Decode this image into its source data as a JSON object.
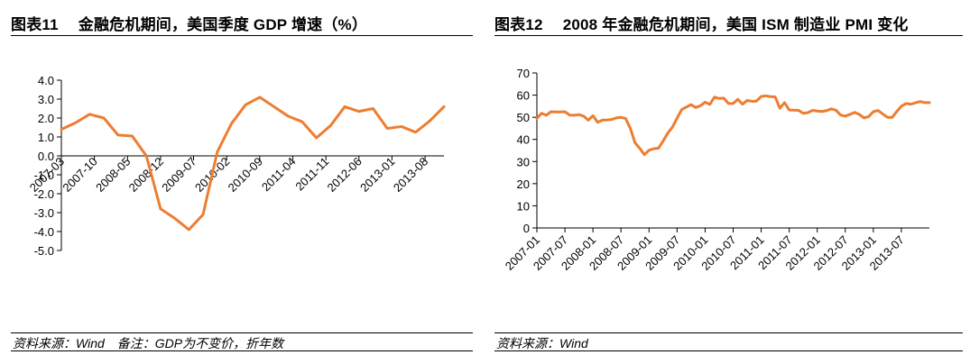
{
  "left": {
    "title_num": "图表11",
    "title_text": "金融危机期间，美国季度 GDP 增速（%）",
    "source": "资料来源：Wind",
    "note": "备注：GDP为不变价，折年数"
  },
  "right": {
    "title_num": "图表12",
    "title_text": "2008 年金融危机期间，美国 ISM 制造业 PMI 变化",
    "source": "资料来源：Wind"
  },
  "colors": {
    "line": "#ED7D31",
    "axis": "#000000"
  },
  "chart_data": [
    {
      "id": "gdp",
      "type": "line",
      "title": "金融危机期间，美国季度 GDP 增速（%）",
      "ylim": [
        -5.0,
        4.0
      ],
      "ytick_values": [
        4.0,
        3.0,
        2.0,
        1.0,
        0.0,
        -1.0,
        -2.0,
        -3.0,
        -4.0,
        -5.0
      ],
      "ytick_labels": [
        "4.0",
        "3.0",
        "2.0",
        "1.0",
        "0.0",
        "-1.0",
        "-2.0",
        "-3.0",
        "-4.0",
        "-5.0"
      ],
      "xtick_labels": [
        "2007-03",
        "2007-10",
        "2008-05",
        "2008-12",
        "2009-07",
        "2010-02",
        "2010-09",
        "2011-04",
        "2011-11",
        "2012-06",
        "2013-01",
        "2013-08"
      ],
      "xtick_index": [
        0,
        2.33,
        4.67,
        7,
        9.33,
        11.67,
        14,
        16.33,
        18.67,
        21,
        23.33,
        25.67
      ],
      "series": [
        {
          "name": "美国季度GDP增速",
          "values": [
            1.4,
            1.75,
            2.2,
            2.0,
            1.1,
            1.05,
            0.0,
            -2.8,
            -3.3,
            -3.9,
            -3.1,
            0.2,
            1.7,
            2.7,
            3.1,
            2.6,
            2.1,
            1.8,
            0.95,
            1.6,
            2.6,
            2.35,
            2.5,
            1.45,
            1.55,
            1.25,
            1.85,
            2.6
          ]
        }
      ]
    },
    {
      "id": "pmi",
      "type": "line",
      "title": "2008 年金融危机期间，美国 ISM 制造业 PMI 变化",
      "ylim": [
        0,
        70
      ],
      "ytick_values": [
        70,
        60,
        50,
        40,
        30,
        20,
        10,
        0
      ],
      "ytick_labels": [
        "70",
        "60",
        "50",
        "40",
        "30",
        "20",
        "10",
        "0"
      ],
      "xtick_labels": [
        "2007-01",
        "2007-07",
        "2008-01",
        "2008-07",
        "2009-01",
        "2009-07",
        "2010-01",
        "2010-07",
        "2011-01",
        "2011-07",
        "2012-01",
        "2012-07",
        "2013-01",
        "2013-07"
      ],
      "xtick_index": [
        0,
        6,
        12,
        18,
        24,
        30,
        36,
        42,
        48,
        54,
        60,
        66,
        72,
        78
      ],
      "series": [
        {
          "name": "ISM制造业PMI",
          "values": [
            49.5,
            51.8,
            50.9,
            52.5,
            52.4,
            52.4,
            52.5,
            51.0,
            50.9,
            51.2,
            50.5,
            48.7,
            50.7,
            47.7,
            48.7,
            48.8,
            49.0,
            49.7,
            50.0,
            49.4,
            45.0,
            38.5,
            36.0,
            33.1,
            35.1,
            35.8,
            36.0,
            39.2,
            42.8,
            45.5,
            49.6,
            53.5,
            54.6,
            55.7,
            54.4,
            55.2,
            56.8,
            55.8,
            59.1,
            58.5,
            58.6,
            56.2,
            56.2,
            58.1,
            55.9,
            57.6,
            57.2,
            57.3,
            59.4,
            59.7,
            59.3,
            59.2,
            54.1,
            56.6,
            53.3,
            53.2,
            53.1,
            51.8,
            52.1,
            53.1,
            52.8,
            52.6,
            53.0,
            53.8,
            53.2,
            51.0,
            50.5,
            51.3,
            52.2,
            51.3,
            49.7,
            50.3,
            52.5,
            53.1,
            51.5,
            50.0,
            49.9,
            52.5,
            55.0,
            56.2,
            55.9,
            56.5,
            57.1,
            56.6,
            56.6
          ]
        }
      ]
    }
  ]
}
